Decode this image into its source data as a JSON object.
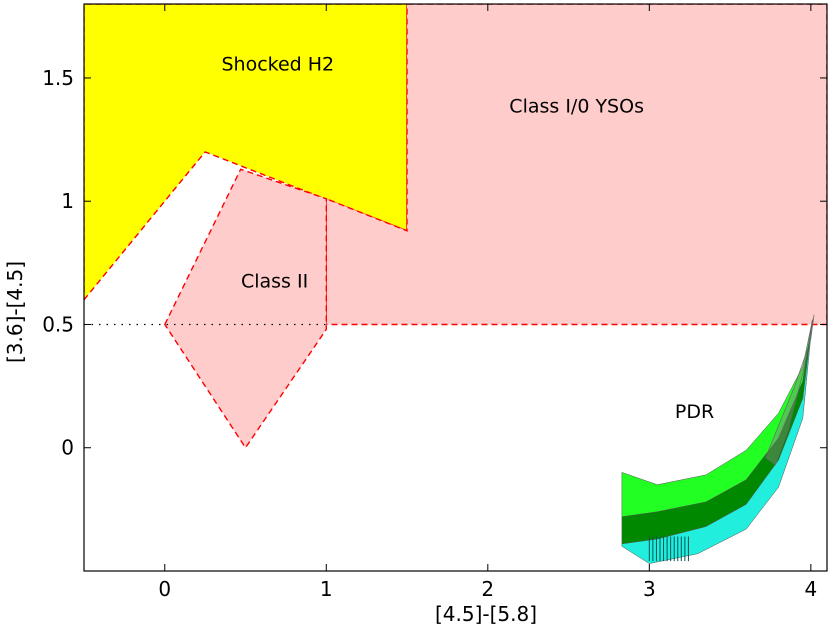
{
  "chart_data": {
    "type": "diagram",
    "title": "",
    "xlabel": "[4.5]-[5.8]",
    "ylabel": "[3.6]-[4.5]",
    "xlim": [
      -0.5,
      4.1
    ],
    "ylim": [
      -0.5,
      1.8
    ],
    "xticks": [
      "0",
      "1",
      "2",
      "3",
      "4"
    ],
    "xtick_values": [
      0,
      1,
      2,
      3,
      4
    ],
    "yticks": [
      "0",
      "0.5",
      "1",
      "1.5"
    ],
    "ytick_values": [
      0,
      0.5,
      1,
      1.5
    ],
    "colors": {
      "shocked": "#ffff00",
      "yso": "#ffcccc",
      "boundary": "#ff0000",
      "pdr_light": "#22ff22",
      "pdr_dark": "#008800",
      "pdr_cyan": "#22eedd"
    },
    "regions": [
      {
        "name": "Shocked H2",
        "label": "Shocked H2",
        "label_pos": [
          0.7,
          1.53
        ],
        "fill": "#ffff00",
        "polygon": [
          [
            -0.5,
            0.6
          ],
          [
            0.25,
            1.2
          ],
          [
            1.5,
            0.88
          ],
          [
            1.5,
            1.8
          ],
          [
            -0.5,
            1.8
          ]
        ]
      },
      {
        "name": "Class I/0 YSOs",
        "label": "Class I/0 YSOs",
        "label_pos": [
          2.55,
          1.36
        ],
        "fill": "#ffcccc",
        "polygon": [
          [
            1.5,
            1.8
          ],
          [
            4.1,
            1.8
          ],
          [
            4.1,
            0.5
          ],
          [
            1.0,
            0.5
          ],
          [
            1.0,
            1.01
          ],
          [
            1.5,
            0.88
          ]
        ]
      },
      {
        "name": "Class II",
        "label": "Class II",
        "label_pos": [
          0.68,
          0.65
        ],
        "fill": "#ffcccc",
        "polygon": [
          [
            0.0,
            0.5
          ],
          [
            0.47,
            1.13
          ],
          [
            1.0,
            1.01
          ],
          [
            1.0,
            0.48
          ],
          [
            0.5,
            0.0
          ]
        ]
      }
    ],
    "dotted_line": {
      "x": [
        -0.5,
        1.0
      ],
      "y": 0.5
    },
    "pdr": {
      "label": "PDR",
      "label_pos": [
        3.28,
        0.12
      ],
      "bands": [
        {
          "name": "pdr-band-light",
          "fill": "#22ff22",
          "upper": [
            [
              2.83,
              -0.1
            ],
            [
              3.05,
              -0.15
            ],
            [
              3.35,
              -0.11
            ],
            [
              3.6,
              -0.01
            ],
            [
              3.8,
              0.14
            ],
            [
              3.95,
              0.33
            ],
            [
              4.01,
              0.52
            ]
          ],
          "lower": [
            [
              2.83,
              -0.28
            ],
            [
              3.05,
              -0.26
            ],
            [
              3.35,
              -0.22
            ],
            [
              3.6,
              -0.13
            ],
            [
              3.8,
              0.04
            ],
            [
              3.95,
              0.27
            ],
            [
              4.01,
              0.52
            ]
          ]
        },
        {
          "name": "pdr-band-dark",
          "fill": "#008800",
          "upper": [
            [
              2.83,
              -0.28
            ],
            [
              3.05,
              -0.26
            ],
            [
              3.35,
              -0.22
            ],
            [
              3.6,
              -0.13
            ],
            [
              3.8,
              0.04
            ],
            [
              3.95,
              0.27
            ],
            [
              4.01,
              0.52
            ]
          ],
          "lower": [
            [
              2.83,
              -0.39
            ],
            [
              3.05,
              -0.37
            ],
            [
              3.35,
              -0.32
            ],
            [
              3.6,
              -0.23
            ],
            [
              3.8,
              -0.05
            ],
            [
              3.95,
              0.2
            ],
            [
              4.01,
              0.52
            ]
          ]
        },
        {
          "name": "pdr-band-cyan",
          "fill": "#22eedd",
          "upper": [
            [
              2.83,
              -0.39
            ],
            [
              3.05,
              -0.37
            ],
            [
              3.35,
              -0.32
            ],
            [
              3.6,
              -0.23
            ],
            [
              3.8,
              -0.05
            ],
            [
              3.95,
              0.2
            ],
            [
              4.01,
              0.52
            ]
          ],
          "lower": [
            [
              2.83,
              -0.4
            ],
            [
              3.0,
              -0.47
            ],
            [
              3.3,
              -0.43
            ],
            [
              3.6,
              -0.33
            ],
            [
              3.8,
              -0.16
            ],
            [
              3.95,
              0.12
            ],
            [
              4.01,
              0.52
            ]
          ]
        }
      ],
      "overlay": [
        [
          3.72,
          -0.04
        ],
        [
          3.8,
          0.09
        ],
        [
          3.9,
          0.25
        ],
        [
          4.0,
          0.44
        ],
        [
          4.02,
          0.54
        ],
        [
          3.95,
          0.3
        ],
        [
          3.86,
          0.07
        ],
        [
          3.78,
          -0.07
        ]
      ]
    }
  }
}
